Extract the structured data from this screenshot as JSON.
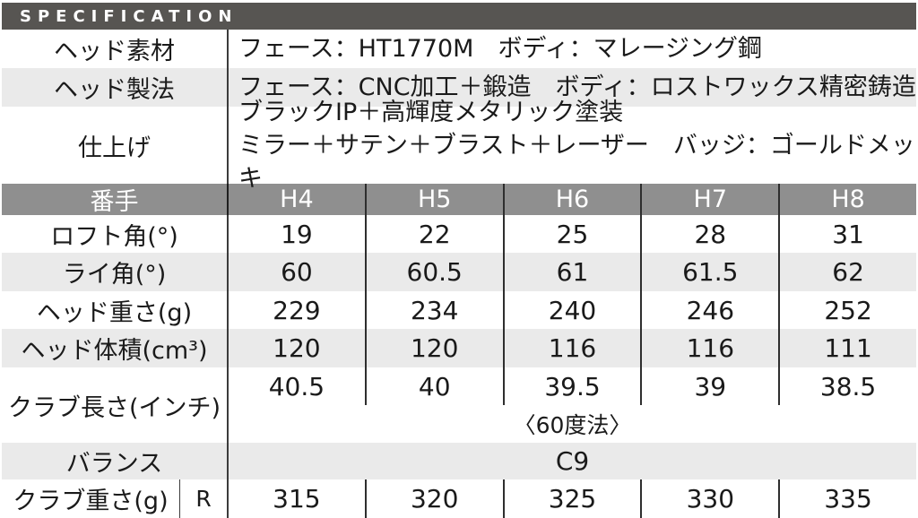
{
  "title": "SPECIFICATION",
  "colors": {
    "titlebar_bg": "#575552",
    "header_row_bg": "#8f8f8f",
    "stripe_bg": "#eaeaea",
    "divider": "#3c3c3c",
    "text": "#1a1a1a",
    "header_text": "#ffffff"
  },
  "info_rows": [
    {
      "label": "ヘッド素材",
      "lines": [
        "フェース：HT1770M　ボディ：マレージング鋼"
      ]
    },
    {
      "label": "ヘッド製法",
      "lines": [
        "フェース：CNC加工＋鍛造　ボディ：ロストワックス精密鋳造"
      ]
    },
    {
      "label": "仕上げ",
      "lines": [
        "ブラックIP＋高輝度メタリック塗装",
        "ミラー＋サテン＋ブラスト＋レーザー　バッジ：ゴールドメッキ"
      ]
    }
  ],
  "spec_header": {
    "label": "番手",
    "columns": [
      "H4",
      "H5",
      "H6",
      "H7",
      "H8"
    ]
  },
  "spec_rows": [
    {
      "label": "ロフト角(°)",
      "values": [
        "19",
        "22",
        "25",
        "28",
        "31"
      ]
    },
    {
      "label": "ライ角(°)",
      "values": [
        "60",
        "60.5",
        "61",
        "61.5",
        "62"
      ]
    },
    {
      "label": "ヘッド重さ(g)",
      "values": [
        "229",
        "234",
        "240",
        "246",
        "252"
      ]
    },
    {
      "label": "ヘッド体積(cm³)",
      "values": [
        "120",
        "120",
        "116",
        "116",
        "111"
      ]
    }
  ],
  "club_length": {
    "label": "クラブ長さ(インチ)",
    "values": [
      "40.5",
      "40",
      "39.5",
      "39",
      "38.5"
    ],
    "note": "〈60度法〉"
  },
  "balance": {
    "label": "バランス",
    "value": "C9"
  },
  "club_weight": {
    "label": "クラブ重さ(g)",
    "flex_label": "R",
    "values": [
      "315",
      "320",
      "325",
      "330",
      "335"
    ]
  },
  "chart_data": {
    "type": "table",
    "title": "SPECIFICATION",
    "columns": [
      "番手",
      "H4",
      "H5",
      "H6",
      "H7",
      "H8"
    ],
    "rows": [
      [
        "ヘッド素材",
        "フェース：HT1770M　ボディ：マレージング鋼"
      ],
      [
        "ヘッド製法",
        "フェース：CNC加工＋鍛造　ボディ：ロストワックス精密鋳造"
      ],
      [
        "仕上げ",
        "ブラックIP＋高輝度メタリック塗装　ミラー＋サテン＋ブラスト＋レーザー　バッジ：ゴールドメッキ"
      ],
      [
        "ロフト角(°)",
        19,
        22,
        25,
        28,
        31
      ],
      [
        "ライ角(°)",
        60,
        60.5,
        61,
        61.5,
        62
      ],
      [
        "ヘッド重さ(g)",
        229,
        234,
        240,
        246,
        252
      ],
      [
        "ヘッド体積(cm³)",
        120,
        120,
        116,
        116,
        111
      ],
      [
        "クラブ長さ(インチ) 〈60度法〉",
        40.5,
        40,
        39.5,
        39,
        38.5
      ],
      [
        "バランス",
        "C9",
        "C9",
        "C9",
        "C9",
        "C9"
      ],
      [
        "クラブ重さ(g) R",
        315,
        320,
        325,
        330,
        335
      ]
    ]
  }
}
